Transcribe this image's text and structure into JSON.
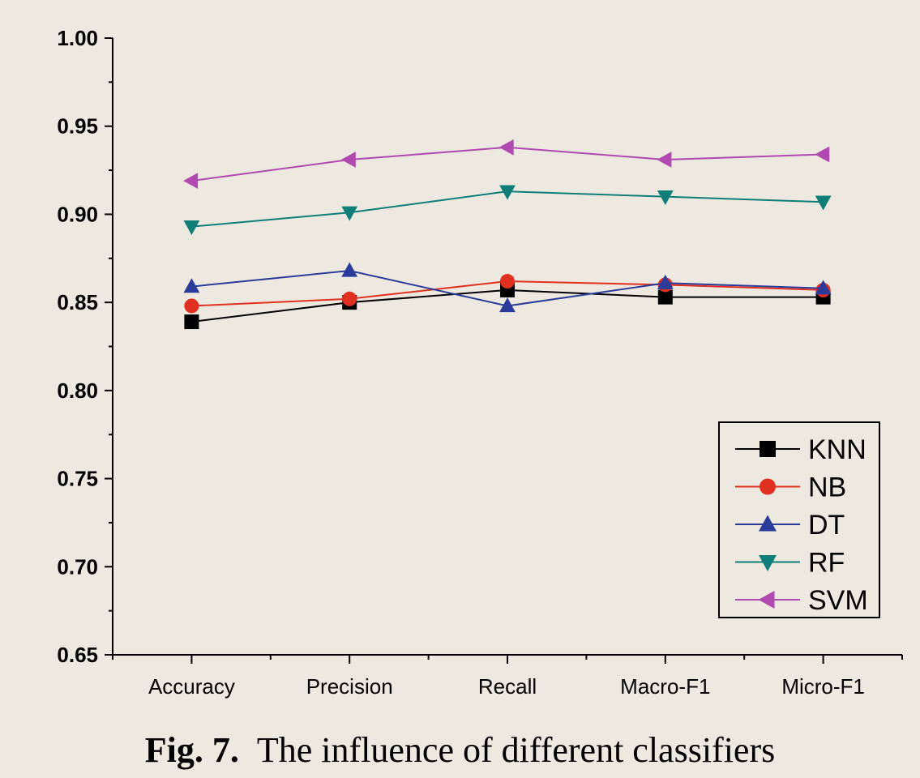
{
  "chart_data": {
    "type": "line",
    "categories": [
      "Accuracy",
      "Precision",
      "Recall",
      "Macro-F1",
      "Micro-F1"
    ],
    "ylim": [
      0.65,
      1.0
    ],
    "yticks": [
      "0.65",
      "0.70",
      "0.75",
      "0.80",
      "0.85",
      "0.90",
      "0.95",
      "1.00"
    ],
    "grid": false,
    "legend_position": "bottom-right",
    "series": [
      {
        "name": "KNN",
        "values": [
          0.839,
          0.85,
          0.857,
          0.853,
          0.853
        ],
        "color": "#000000",
        "marker": "square"
      },
      {
        "name": "NB",
        "values": [
          0.848,
          0.852,
          0.862,
          0.86,
          0.857
        ],
        "color": "#e03020",
        "marker": "circle"
      },
      {
        "name": "DT",
        "values": [
          0.859,
          0.868,
          0.848,
          0.861,
          0.858
        ],
        "color": "#2a3b9a",
        "marker": "triangle-up"
      },
      {
        "name": "RF",
        "values": [
          0.893,
          0.901,
          0.913,
          0.91,
          0.907
        ],
        "color": "#0f7d78",
        "marker": "triangle-down"
      },
      {
        "name": "SVM",
        "values": [
          0.919,
          0.931,
          0.938,
          0.931,
          0.934
        ],
        "color": "#b04ab0",
        "marker": "triangle-left"
      }
    ]
  },
  "caption": {
    "fig_label": "Fig. 7.",
    "text": "The influence of different classifiers"
  }
}
